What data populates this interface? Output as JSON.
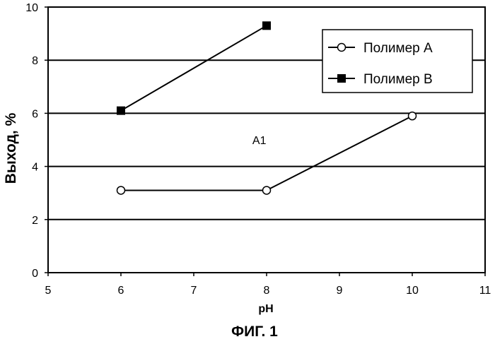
{
  "chart_data": {
    "type": "line",
    "title": "",
    "xlabel": "pH",
    "ylabel": "Выход, %",
    "xlim": [
      5,
      11
    ],
    "ylim": [
      0,
      10
    ],
    "x_ticks": [
      5,
      6,
      7,
      8,
      9,
      10,
      11
    ],
    "y_ticks": [
      0,
      2,
      4,
      6,
      8,
      10
    ],
    "grid": "horizontal",
    "legend_position": "top-right",
    "series": [
      {
        "name": "Полимер А",
        "marker": "open-circle",
        "x": [
          6,
          8,
          10
        ],
        "y": [
          3.1,
          3.1,
          5.9
        ]
      },
      {
        "name": "Полимер В",
        "marker": "filled-square",
        "x": [
          6,
          8
        ],
        "y": [
          6.1,
          9.3
        ]
      }
    ],
    "annotations": [
      {
        "text": "A1",
        "x": 7.9,
        "y": 5.0
      }
    ]
  },
  "caption": "ФИГ. 1",
  "colors": {
    "line": "#000000",
    "background": "#ffffff"
  }
}
